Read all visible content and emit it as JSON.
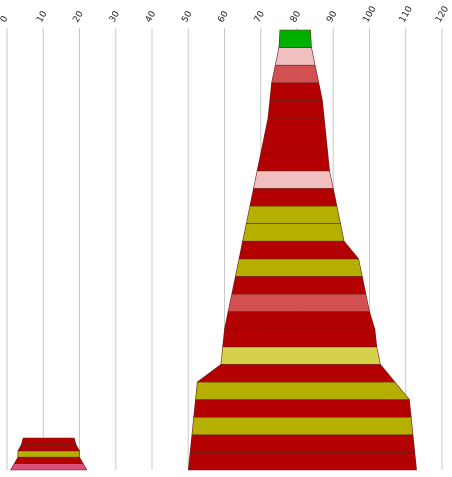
{
  "chart_data": {
    "type": "bar",
    "orientation": "vertical-stacked-pyramid",
    "xlim": [
      0,
      120
    ],
    "x_ticks": [
      "0",
      "10",
      "20",
      "30",
      "40",
      "50",
      "60",
      "70",
      "80",
      "90",
      "100",
      "110",
      "120"
    ],
    "grid": true,
    "legend": "none",
    "stacks": [
      {
        "bands": [
          {
            "x0": 1.0,
            "x1": 22.0,
            "color": "#d9507a"
          },
          {
            "x0": 2.0,
            "x1": 21.0,
            "color": "#b30000"
          },
          {
            "x0": 3.0,
            "x1": 20.0,
            "color": "#b5b000"
          },
          {
            "x0": 3.0,
            "x1": 20.0,
            "color": "#b30000"
          },
          {
            "x0": 4.0,
            "x1": 19.0,
            "color": "#b30000"
          }
        ]
      },
      {
        "bands": [
          {
            "x0": 50.0,
            "x1": 113.0,
            "color": "#b30000"
          },
          {
            "x0": 50.5,
            "x1": 112.5,
            "color": "#b30000"
          },
          {
            "x0": 51.0,
            "x1": 112.0,
            "color": "#b5b000"
          },
          {
            "x0": 51.5,
            "x1": 111.5,
            "color": "#b30000"
          },
          {
            "x0": 52.0,
            "x1": 111.0,
            "color": "#b5b000"
          },
          {
            "x0": 52.5,
            "x1": 107.0,
            "color": "#b30000"
          },
          {
            "x0": 59.0,
            "x1": 103.0,
            "color": "#d4d04a"
          },
          {
            "x0": 59.5,
            "x1": 102.0,
            "color": "#b30000"
          },
          {
            "x0": 60.0,
            "x1": 101.5,
            "color": "#b30000"
          },
          {
            "x0": 61.0,
            "x1": 100.0,
            "color": "#d15050"
          },
          {
            "x0": 62.0,
            "x1": 99.0,
            "color": "#b30000"
          },
          {
            "x0": 63.0,
            "x1": 98.0,
            "color": "#b5b000"
          },
          {
            "x0": 64.0,
            "x1": 97.0,
            "color": "#b30000"
          },
          {
            "x0": 65.0,
            "x1": 93.0,
            "color": "#b5b000"
          },
          {
            "x0": 66.0,
            "x1": 92.0,
            "color": "#b5b000"
          },
          {
            "x0": 67.0,
            "x1": 91.0,
            "color": "#b30000"
          },
          {
            "x0": 68.0,
            "x1": 90.0,
            "color": "#f0c0c0"
          },
          {
            "x0": 69.0,
            "x1": 89.0,
            "color": "#b30000"
          },
          {
            "x0": 70.0,
            "x1": 88.5,
            "color": "#b30000"
          },
          {
            "x0": 71.0,
            "x1": 88.0,
            "color": "#b30000"
          },
          {
            "x0": 72.0,
            "x1": 87.5,
            "color": "#b30000"
          },
          {
            "x0": 72.5,
            "x1": 87.0,
            "color": "#b30000"
          },
          {
            "x0": 73.0,
            "x1": 86.0,
            "color": "#d15050"
          },
          {
            "x0": 74.0,
            "x1": 85.0,
            "color": "#f0c0c0"
          },
          {
            "x0": 75.0,
            "x1": 84.0,
            "color": "#00b000"
          }
        ]
      }
    ]
  }
}
